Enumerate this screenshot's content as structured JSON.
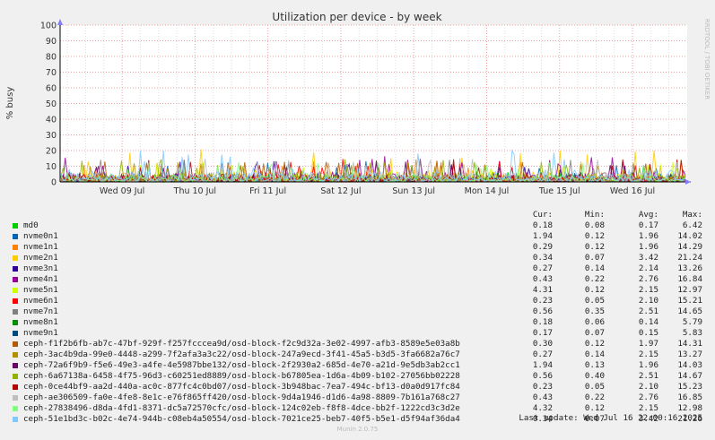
{
  "chart_data": {
    "type": "line",
    "title": "Utilization per device - by week",
    "ylabel": "% busy",
    "ylim": [
      0,
      100
    ],
    "yticks": [
      0,
      10,
      20,
      30,
      40,
      50,
      60,
      70,
      80,
      90,
      100
    ],
    "x_tick_labels": [
      "Wed 09 Jul",
      "Thu 10 Jul",
      "Fri 11 Jul",
      "Sat 12 Jul",
      "Sun 13 Jul",
      "Mon 14 Jul",
      "Tue 15 Jul",
      "Wed 16 Jul"
    ],
    "grid": true,
    "side_label": "RRDTOOL / TOBI OETIKER",
    "columns": [
      "Cur:",
      "Min:",
      "Avg:",
      "Max:"
    ],
    "series": [
      {
        "name": "md0",
        "color": "#00cc00",
        "cur": "0.18",
        "min": "0.08",
        "avg": "0.17",
        "max": "6.42"
      },
      {
        "name": "nvme0n1",
        "color": "#0066b3",
        "cur": "1.94",
        "min": "0.12",
        "avg": "1.96",
        "max": "14.02"
      },
      {
        "name": "nvme1n1",
        "color": "#ff8000",
        "cur": "0.29",
        "min": "0.12",
        "avg": "1.96",
        "max": "14.29"
      },
      {
        "name": "nvme2n1",
        "color": "#ffcc00",
        "cur": "0.34",
        "min": "0.07",
        "avg": "3.42",
        "max": "21.24"
      },
      {
        "name": "nvme3n1",
        "color": "#330099",
        "cur": "0.27",
        "min": "0.14",
        "avg": "2.14",
        "max": "13.26"
      },
      {
        "name": "nvme4n1",
        "color": "#990099",
        "cur": "0.43",
        "min": "0.22",
        "avg": "2.76",
        "max": "16.84"
      },
      {
        "name": "nvme5n1",
        "color": "#ccff00",
        "cur": "4.31",
        "min": "0.12",
        "avg": "2.15",
        "max": "12.97"
      },
      {
        "name": "nvme6n1",
        "color": "#ff0000",
        "cur": "0.23",
        "min": "0.05",
        "avg": "2.10",
        "max": "15.21"
      },
      {
        "name": "nvme7n1",
        "color": "#808080",
        "cur": "0.56",
        "min": "0.35",
        "avg": "2.51",
        "max": "14.65"
      },
      {
        "name": "nvme8n1",
        "color": "#008f00",
        "cur": "0.18",
        "min": "0.06",
        "avg": "0.14",
        "max": "5.79"
      },
      {
        "name": "nvme9n1",
        "color": "#00487d",
        "cur": "0.17",
        "min": "0.07",
        "avg": "0.15",
        "max": "5.83"
      },
      {
        "name": "ceph-f1f2b6fb-ab7c-47bf-929f-f257fcccea9d/osd-block-f2c9d32a-3e02-4997-afb3-8589e5e03a8b",
        "color": "#b35a00",
        "cur": "0.30",
        "min": "0.12",
        "avg": "1.97",
        "max": "14.31"
      },
      {
        "name": "ceph-3ac4b9da-99e0-4448-a299-7f2afa3a3c22/osd-block-247a9ecd-3f41-45a5-b3d5-3fa6682a76c7",
        "color": "#b38f00",
        "cur": "0.27",
        "min": "0.14",
        "avg": "2.15",
        "max": "13.27"
      },
      {
        "name": "ceph-72a6f9b9-f5e6-49e3-a4fe-4e5987bbe132/osd-block-2f2930a2-685d-4e70-a21d-9e5db3ab2cc1",
        "color": "#6b006b",
        "cur": "1.94",
        "min": "0.13",
        "avg": "1.96",
        "max": "14.03"
      },
      {
        "name": "ceph-6a67138a-6458-4f75-96d3-c60251ed8889/osd-block-b67805ea-1d6a-4b09-b102-27056bb02228",
        "color": "#8fb300",
        "cur": "0.56",
        "min": "0.40",
        "avg": "2.51",
        "max": "14.67"
      },
      {
        "name": "ceph-0ce44bf9-aa2d-440a-ac0c-877fc4c0bd07/osd-block-3b948bac-7ea7-494c-bf13-d0a0d917fc84",
        "color": "#b30000",
        "cur": "0.23",
        "min": "0.05",
        "avg": "2.10",
        "max": "15.23"
      },
      {
        "name": "ceph-ae306509-fa0e-4fe8-8e1c-e76f865ff420/osd-block-9d4a1946-d1d6-4a98-8809-7b161a768c27",
        "color": "#bebebe",
        "cur": "0.43",
        "min": "0.22",
        "avg": "2.76",
        "max": "16.85"
      },
      {
        "name": "ceph-27838496-d8da-4fd1-8371-dc5a72570cfc/osd-block-124c02eb-f8f8-4dce-bb2f-1222cd3c3d2e",
        "color": "#80ff80",
        "cur": "4.32",
        "min": "0.12",
        "avg": "2.15",
        "max": "12.98"
      },
      {
        "name": "ceph-51e1bd3c-b02c-4e74-944b-c08eb4a50554/osd-block-7021ce25-beb7-40f5-b5e1-d5f94af36da4",
        "color": "#80c9ff",
        "cur": "0.34",
        "min": "0.07",
        "avg": "3.42",
        "max": "21.26"
      }
    ]
  },
  "last_update": "Last update: Wed Jul 16 22:00:16 2025",
  "footer": "Munin 2.0.75"
}
